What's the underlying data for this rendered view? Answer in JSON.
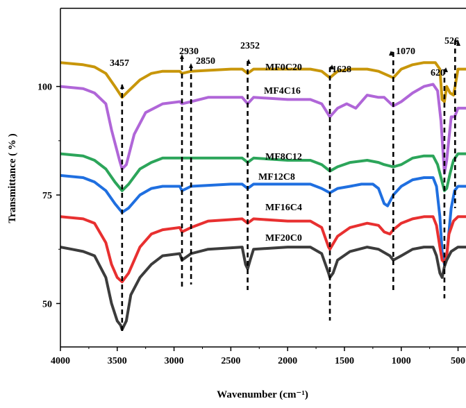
{
  "chart_data": {
    "type": "line",
    "title": "",
    "xlabel": "Wavenumber (cm⁻¹)",
    "ylabel": "Transmittance ( % )",
    "xlim": [
      4000,
      430
    ],
    "ylim": [
      40,
      118
    ],
    "x_reversed": true,
    "x_ticks": [
      4000,
      3500,
      3000,
      2500,
      2000,
      1500,
      1000,
      500
    ],
    "y_ticks": [
      50,
      75,
      100
    ],
    "grid": false,
    "legend": "labels placed directly above each curve",
    "series": [
      {
        "name": "MF0C20",
        "color": "#c8960a",
        "points": [
          [
            4000,
            105.5
          ],
          [
            3800,
            105
          ],
          [
            3700,
            104.5
          ],
          [
            3600,
            103
          ],
          [
            3520,
            100
          ],
          [
            3457,
            97.5
          ],
          [
            3400,
            99
          ],
          [
            3300,
            101.5
          ],
          [
            3200,
            103
          ],
          [
            3100,
            103.5
          ],
          [
            2950,
            103.5
          ],
          [
            2930,
            103
          ],
          [
            2850,
            103.5
          ],
          [
            2500,
            104
          ],
          [
            2400,
            104
          ],
          [
            2352,
            103
          ],
          [
            2300,
            104
          ],
          [
            2000,
            104
          ],
          [
            1800,
            104
          ],
          [
            1700,
            103.5
          ],
          [
            1628,
            102
          ],
          [
            1560,
            103.5
          ],
          [
            1450,
            104
          ],
          [
            1300,
            104
          ],
          [
            1200,
            103.5
          ],
          [
            1070,
            102
          ],
          [
            1000,
            104
          ],
          [
            900,
            105
          ],
          [
            800,
            105.5
          ],
          [
            700,
            105.5
          ],
          [
            660,
            104
          ],
          [
            640,
            97
          ],
          [
            620,
            96.5
          ],
          [
            600,
            100
          ],
          [
            570,
            98.5
          ],
          [
            540,
            98
          ],
          [
            526,
            100
          ],
          [
            500,
            104
          ],
          [
            430,
            104
          ]
        ]
      },
      {
        "name": "MF4C16",
        "color": "#b066d8",
        "points": [
          [
            4000,
            100
          ],
          [
            3800,
            99.5
          ],
          [
            3700,
            98.5
          ],
          [
            3600,
            96
          ],
          [
            3550,
            90
          ],
          [
            3480,
            83
          ],
          [
            3457,
            81
          ],
          [
            3420,
            82
          ],
          [
            3350,
            89
          ],
          [
            3250,
            94
          ],
          [
            3100,
            96
          ],
          [
            2950,
            96.5
          ],
          [
            2930,
            96
          ],
          [
            2850,
            96.5
          ],
          [
            2700,
            97.5
          ],
          [
            2400,
            97.5
          ],
          [
            2352,
            96
          ],
          [
            2300,
            97.5
          ],
          [
            2000,
            97
          ],
          [
            1800,
            97
          ],
          [
            1700,
            96
          ],
          [
            1628,
            93
          ],
          [
            1560,
            95
          ],
          [
            1480,
            96
          ],
          [
            1400,
            95
          ],
          [
            1300,
            98
          ],
          [
            1200,
            97.5
          ],
          [
            1150,
            97.5
          ],
          [
            1070,
            95.5
          ],
          [
            1000,
            96.5
          ],
          [
            900,
            98.5
          ],
          [
            800,
            100
          ],
          [
            720,
            100.5
          ],
          [
            680,
            99
          ],
          [
            650,
            92
          ],
          [
            620,
            80
          ],
          [
            600,
            83
          ],
          [
            560,
            93
          ],
          [
            530,
            93
          ],
          [
            500,
            95
          ],
          [
            430,
            95
          ]
        ]
      },
      {
        "name": "MF8C12",
        "color": "#2ca55a",
        "points": [
          [
            4000,
            84.5
          ],
          [
            3800,
            84
          ],
          [
            3700,
            83
          ],
          [
            3600,
            81
          ],
          [
            3520,
            78
          ],
          [
            3457,
            76
          ],
          [
            3400,
            77.5
          ],
          [
            3300,
            81
          ],
          [
            3200,
            82.5
          ],
          [
            3100,
            83.5
          ],
          [
            2930,
            83.5
          ],
          [
            2850,
            83.5
          ],
          [
            2500,
            83.5
          ],
          [
            2400,
            83.5
          ],
          [
            2352,
            82.5
          ],
          [
            2300,
            83.5
          ],
          [
            2000,
            83
          ],
          [
            1800,
            83
          ],
          [
            1700,
            82
          ],
          [
            1628,
            80.5
          ],
          [
            1560,
            81.5
          ],
          [
            1450,
            82.5
          ],
          [
            1300,
            83
          ],
          [
            1200,
            82.5
          ],
          [
            1150,
            82
          ],
          [
            1070,
            81.5
          ],
          [
            1000,
            82
          ],
          [
            900,
            83.5
          ],
          [
            800,
            84
          ],
          [
            720,
            84
          ],
          [
            680,
            82
          ],
          [
            650,
            79
          ],
          [
            620,
            76
          ],
          [
            600,
            76.5
          ],
          [
            570,
            80
          ],
          [
            540,
            83
          ],
          [
            500,
            84.5
          ],
          [
            430,
            84.5
          ]
        ]
      },
      {
        "name": "MF12C8",
        "color": "#1f6fe0",
        "points": [
          [
            4000,
            79.5
          ],
          [
            3800,
            79
          ],
          [
            3700,
            78
          ],
          [
            3600,
            76
          ],
          [
            3520,
            73
          ],
          [
            3457,
            71
          ],
          [
            3400,
            72
          ],
          [
            3300,
            75
          ],
          [
            3200,
            76.5
          ],
          [
            3100,
            77
          ],
          [
            2950,
            77
          ],
          [
            2930,
            76
          ],
          [
            2850,
            77
          ],
          [
            2500,
            77.5
          ],
          [
            2400,
            77.5
          ],
          [
            2352,
            76.5
          ],
          [
            2300,
            77.5
          ],
          [
            2000,
            77.5
          ],
          [
            1800,
            77.5
          ],
          [
            1700,
            76.5
          ],
          [
            1628,
            75.5
          ],
          [
            1560,
            76.5
          ],
          [
            1450,
            77
          ],
          [
            1350,
            77.5
          ],
          [
            1250,
            77.5
          ],
          [
            1200,
            76.5
          ],
          [
            1150,
            73
          ],
          [
            1120,
            72.5
          ],
          [
            1070,
            75
          ],
          [
            1000,
            77
          ],
          [
            900,
            78.5
          ],
          [
            800,
            79
          ],
          [
            720,
            79
          ],
          [
            690,
            77
          ],
          [
            660,
            70
          ],
          [
            640,
            62
          ],
          [
            620,
            59
          ],
          [
            600,
            61
          ],
          [
            560,
            72
          ],
          [
            530,
            76
          ],
          [
            500,
            77
          ],
          [
            430,
            77
          ]
        ]
      },
      {
        "name": "MF16C4",
        "color": "#e83030",
        "points": [
          [
            4000,
            70
          ],
          [
            3800,
            69.5
          ],
          [
            3700,
            68.5
          ],
          [
            3600,
            64
          ],
          [
            3550,
            59
          ],
          [
            3500,
            56
          ],
          [
            3457,
            55
          ],
          [
            3400,
            57
          ],
          [
            3300,
            63
          ],
          [
            3200,
            66
          ],
          [
            3100,
            67
          ],
          [
            2950,
            67.5
          ],
          [
            2930,
            66.5
          ],
          [
            2850,
            67.5
          ],
          [
            2700,
            69
          ],
          [
            2400,
            69.5
          ],
          [
            2352,
            68.5
          ],
          [
            2300,
            69.5
          ],
          [
            2000,
            69
          ],
          [
            1800,
            69
          ],
          [
            1700,
            67.5
          ],
          [
            1640,
            63
          ],
          [
            1628,
            62.5
          ],
          [
            1560,
            65.5
          ],
          [
            1450,
            67.5
          ],
          [
            1300,
            68.5
          ],
          [
            1200,
            68
          ],
          [
            1150,
            66.5
          ],
          [
            1100,
            66
          ],
          [
            1070,
            67
          ],
          [
            1000,
            68.5
          ],
          [
            900,
            69.5
          ],
          [
            800,
            70
          ],
          [
            720,
            70
          ],
          [
            690,
            68
          ],
          [
            660,
            63
          ],
          [
            640,
            60
          ],
          [
            620,
            59.5
          ],
          [
            600,
            61
          ],
          [
            580,
            66
          ],
          [
            540,
            69
          ],
          [
            500,
            70
          ],
          [
            430,
            70
          ]
        ]
      },
      {
        "name": "MF20C0",
        "color": "#3c3c3c",
        "points": [
          [
            4000,
            63
          ],
          [
            3900,
            62.5
          ],
          [
            3800,
            62
          ],
          [
            3700,
            61
          ],
          [
            3600,
            56
          ],
          [
            3550,
            50
          ],
          [
            3500,
            46
          ],
          [
            3470,
            45
          ],
          [
            3457,
            44
          ],
          [
            3420,
            46
          ],
          [
            3380,
            52
          ],
          [
            3300,
            56
          ],
          [
            3200,
            59
          ],
          [
            3100,
            61
          ],
          [
            2950,
            61.5
          ],
          [
            2930,
            60
          ],
          [
            2850,
            61.5
          ],
          [
            2700,
            62.5
          ],
          [
            2400,
            63
          ],
          [
            2370,
            59
          ],
          [
            2352,
            58
          ],
          [
            2330,
            60
          ],
          [
            2300,
            62.5
          ],
          [
            2000,
            63
          ],
          [
            1800,
            63
          ],
          [
            1700,
            61.5
          ],
          [
            1640,
            57
          ],
          [
            1628,
            56
          ],
          [
            1600,
            57
          ],
          [
            1560,
            60
          ],
          [
            1450,
            62
          ],
          [
            1300,
            63
          ],
          [
            1200,
            62.5
          ],
          [
            1100,
            61
          ],
          [
            1070,
            60
          ],
          [
            1000,
            61
          ],
          [
            900,
            62.5
          ],
          [
            800,
            63
          ],
          [
            720,
            63
          ],
          [
            690,
            61
          ],
          [
            660,
            57
          ],
          [
            640,
            56
          ],
          [
            620,
            58.5
          ],
          [
            600,
            60
          ],
          [
            560,
            62
          ],
          [
            500,
            63
          ],
          [
            430,
            63
          ]
        ]
      }
    ],
    "peak_annotations": [
      {
        "label": "3457",
        "x": 3457
      },
      {
        "label": "2930",
        "x": 2930
      },
      {
        "label": "2850",
        "x": 2850
      },
      {
        "label": "2352",
        "x": 2352
      },
      {
        "label": "1628",
        "x": 1628
      },
      {
        "label": "1070",
        "x": 1070
      },
      {
        "label": "620",
        "x": 620
      },
      {
        "label": "526",
        "x": 526
      }
    ]
  }
}
